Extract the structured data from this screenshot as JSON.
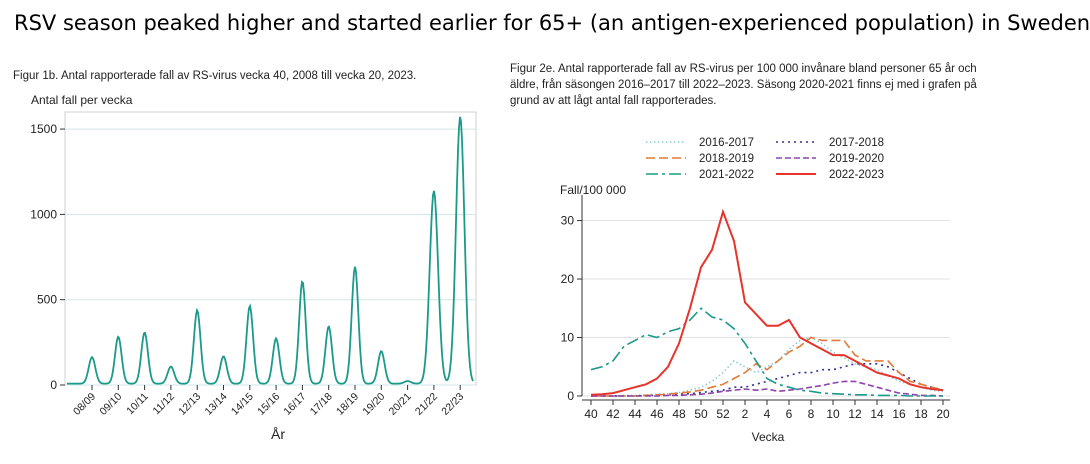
{
  "headline": "RSV season peaked higher and started earlier for 65+ (an antigen-experienced population) in Sweden",
  "chart_data": [
    {
      "type": "line",
      "caption": "Figur 1b. Antal rapporterade fall av RS-virus vecka 40, 2008 till vecka 20, 2023.",
      "ylabel": "Antal fall per vecka",
      "xlabel": "År",
      "ylim": [
        0,
        1600
      ],
      "yticks": [
        0,
        500,
        1000,
        1500
      ],
      "grid": true,
      "color": "#1b9a8a",
      "seasons": [
        "08/09",
        "09/10",
        "10/11",
        "11/12",
        "12/13",
        "13/14",
        "14/15",
        "15/16",
        "16/17",
        "17/18",
        "18/19",
        "19/20",
        "20/21",
        "21/22",
        "22/23"
      ],
      "peaks": [
        155,
        275,
        300,
        100,
        430,
        160,
        455,
        265,
        600,
        335,
        685,
        190,
        15,
        1130,
        1565
      ]
    },
    {
      "type": "line",
      "caption": "Figur 2e. Antal rapporterade fall av RS-virus per 100 000 invånare bland personer 65 år och äldre, från säsongen 2016–2017 till 2022–2023. Säsong 2020-2021 finns ej med i grafen på grund av att lågt antal fall rapporterades.",
      "ylabel": "Fall/100 000",
      "xlabel": "Vecka",
      "ylim": [
        0,
        33
      ],
      "yticks": [
        0,
        10,
        20,
        30
      ],
      "grid": true,
      "legend": "top",
      "x": [
        40,
        41,
        42,
        43,
        44,
        45,
        46,
        47,
        48,
        49,
        50,
        51,
        52,
        1,
        2,
        3,
        4,
        5,
        6,
        7,
        8,
        9,
        10,
        11,
        12,
        13,
        14,
        15,
        16,
        17,
        18,
        19,
        20
      ],
      "xticks": [
        "40",
        "42",
        "44",
        "46",
        "48",
        "50",
        "52",
        "2",
        "4",
        "6",
        "8",
        "10",
        "12",
        "14",
        "16",
        "18",
        "20"
      ],
      "series": [
        {
          "name": "2016-2017",
          "color": "#8ecdd8",
          "dash": "1.5 2.5",
          "values": [
            0,
            0,
            0,
            0.1,
            0.1,
            0.2,
            0.3,
            0.4,
            0.6,
            1,
            1.5,
            2.5,
            4,
            6,
            5,
            4,
            5,
            6,
            8,
            9.5,
            10,
            9,
            7.5,
            6.5,
            5.5,
            5,
            4.5,
            3.5,
            2.5,
            2,
            1.5,
            1,
            0.8
          ]
        },
        {
          "name": "2017-2018",
          "color": "#2e3192",
          "dash": "2 4",
          "values": [
            0,
            0,
            0,
            0,
            0,
            0.1,
            0.1,
            0.2,
            0.3,
            0.4,
            0.6,
            0.8,
            1,
            1.5,
            1.5,
            2,
            2.5,
            3,
            3.5,
            4,
            4,
            4.5,
            4.5,
            5,
            5.5,
            5.5,
            5.5,
            5,
            4,
            3,
            2,
            1.5,
            1
          ]
        },
        {
          "name": "2018-2019",
          "color": "#e07b39",
          "dash": "9 4",
          "values": [
            0,
            0,
            0,
            0,
            0,
            0.1,
            0.2,
            0.3,
            0.5,
            0.7,
            1,
            1.5,
            2,
            3,
            4,
            5.5,
            4.5,
            6,
            7.5,
            8.5,
            10,
            9.5,
            9.5,
            9.5,
            7,
            6,
            6,
            6,
            4,
            2.5,
            2,
            1.5,
            1
          ]
        },
        {
          "name": "2019-2020",
          "color": "#8e44ad",
          "dash": "6 3",
          "values": [
            0,
            0,
            0,
            0,
            0,
            0,
            0,
            0.1,
            0.1,
            0.2,
            0.3,
            0.5,
            0.8,
            1,
            1.2,
            1,
            1.2,
            0.8,
            1,
            1.2,
            1.5,
            1.8,
            2.2,
            2.5,
            2.5,
            2,
            1.5,
            1,
            0.5,
            0.3,
            0.1,
            0.1,
            0
          ]
        },
        {
          "name": "2021-2022",
          "color": "#1b9a8a",
          "dash": "12 4 3 4",
          "values": [
            4.5,
            5,
            6,
            8.5,
            9.5,
            10.5,
            10,
            11,
            11.5,
            13,
            15,
            13.5,
            13,
            11.5,
            9,
            6,
            3,
            2,
            1.5,
            1,
            0.8,
            0.5,
            0.4,
            0.3,
            0.2,
            0.2,
            0.1,
            0.1,
            0.1,
            0,
            0,
            0,
            0
          ]
        },
        {
          "name": "2022-2023",
          "color": "#e8332a",
          "dash": "",
          "values": [
            0.2,
            0.3,
            0.5,
            1,
            1.5,
            2,
            3,
            5,
            9,
            15,
            22,
            25,
            31.5,
            26.5,
            16,
            14,
            12,
            12,
            13,
            10,
            9,
            8,
            7,
            7,
            6,
            5,
            4,
            3.5,
            3,
            2,
            1.5,
            1.2,
            1
          ]
        }
      ]
    }
  ]
}
